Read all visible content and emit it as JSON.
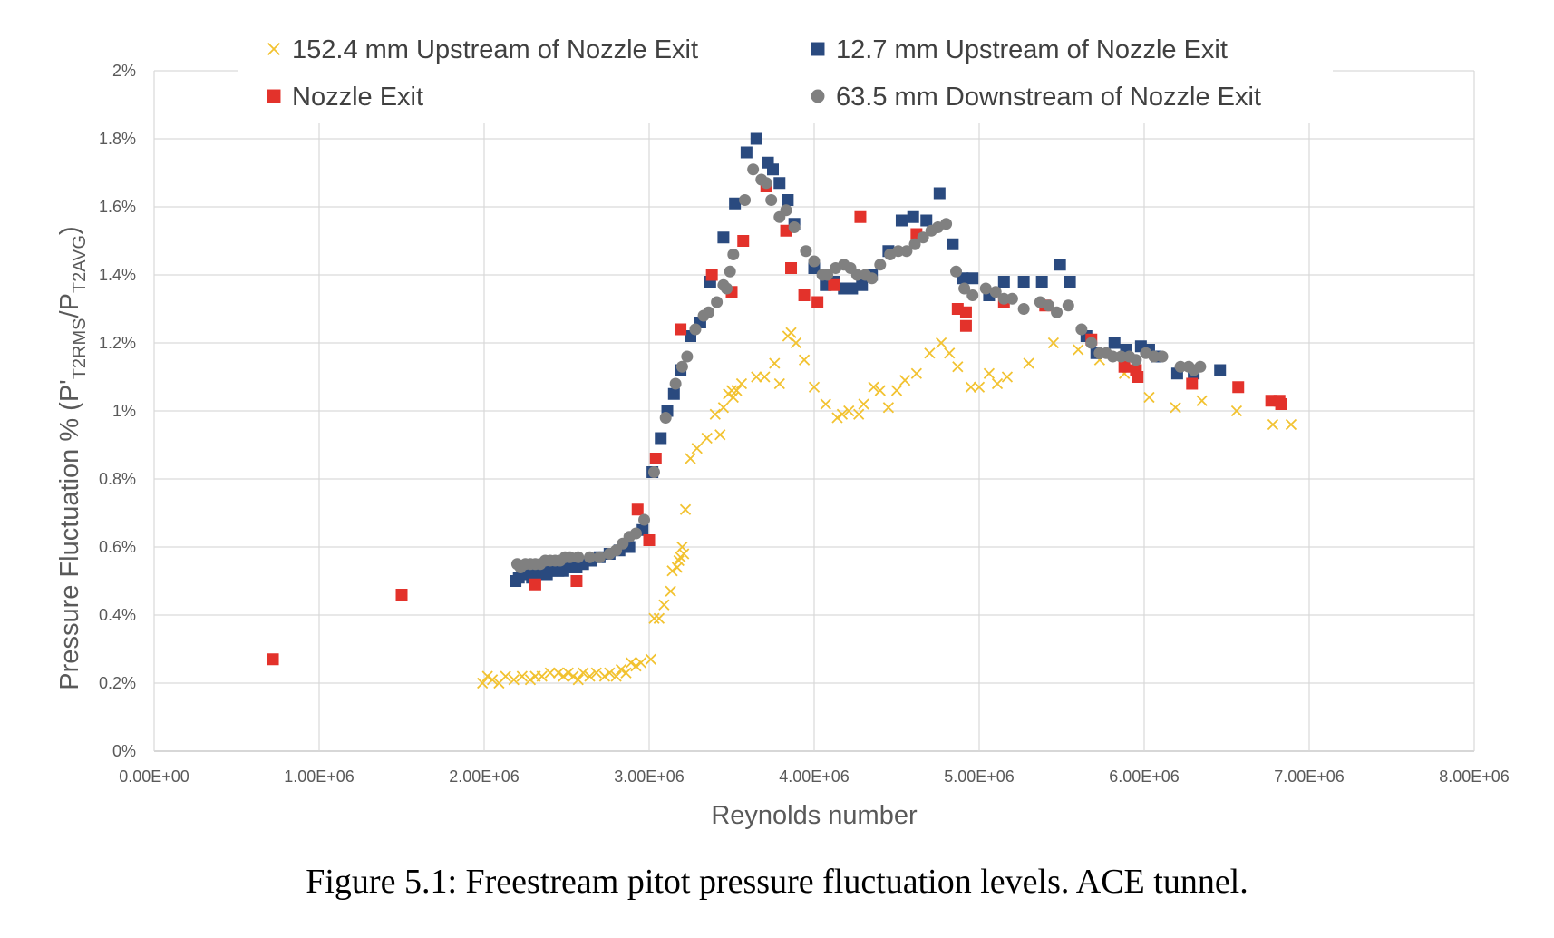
{
  "caption": "Figure 5.1: Freestream pitot pressure fluctuation levels. ACE tunnel.",
  "chart_data": {
    "type": "scatter",
    "xlabel": "Reynolds number",
    "ylabel": {
      "main": "Pressure Fluctuation % (P'",
      "sub1": "T2RMS",
      "mid": "/P",
      "sub2": "T2AVG",
      "end": ")"
    },
    "xlim": [
      0,
      8000000
    ],
    "ylim": [
      0,
      2
    ],
    "x_ticks": [
      "0.00E+00",
      "1.00E+06",
      "2.00E+06",
      "3.00E+06",
      "4.00E+06",
      "5.00E+06",
      "6.00E+06",
      "7.00E+06",
      "8.00E+06"
    ],
    "y_ticks": [
      "0%",
      "0.2%",
      "0.4%",
      "0.6%",
      "0.8%",
      "1%",
      "1.2%",
      "1.4%",
      "1.6%",
      "1.8%",
      "2%"
    ],
    "grid": true,
    "legend_position": "top",
    "series": [
      {
        "name": "152.4 mm Upstream of Nozzle Exit",
        "marker": "x",
        "color": "#F2C230",
        "points": [
          [
            1990000,
            0.2
          ],
          [
            2020000,
            0.22
          ],
          [
            2050000,
            0.21
          ],
          [
            2090000,
            0.2
          ],
          [
            2130000,
            0.22
          ],
          [
            2180000,
            0.21
          ],
          [
            2230000,
            0.22
          ],
          [
            2280000,
            0.21
          ],
          [
            2310000,
            0.22
          ],
          [
            2350000,
            0.22
          ],
          [
            2400000,
            0.23
          ],
          [
            2450000,
            0.23
          ],
          [
            2480000,
            0.22
          ],
          [
            2510000,
            0.23
          ],
          [
            2540000,
            0.22
          ],
          [
            2570000,
            0.21
          ],
          [
            2600000,
            0.23
          ],
          [
            2640000,
            0.22
          ],
          [
            2680000,
            0.23
          ],
          [
            2730000,
            0.22
          ],
          [
            2760000,
            0.23
          ],
          [
            2800000,
            0.22
          ],
          [
            2830000,
            0.24
          ],
          [
            2860000,
            0.23
          ],
          [
            2890000,
            0.26
          ],
          [
            2920000,
            0.25
          ],
          [
            2950000,
            0.26
          ],
          [
            3010000,
            0.27
          ],
          [
            3030000,
            0.39
          ],
          [
            3060000,
            0.39
          ],
          [
            3090000,
            0.43
          ],
          [
            3130000,
            0.47
          ],
          [
            3140000,
            0.53
          ],
          [
            3170000,
            0.54
          ],
          [
            3180000,
            0.56
          ],
          [
            3190000,
            0.57
          ],
          [
            3200000,
            0.6
          ],
          [
            3210000,
            0.58
          ],
          [
            3220000,
            0.71
          ],
          [
            3250000,
            0.86
          ],
          [
            3290000,
            0.89
          ],
          [
            3350000,
            0.92
          ],
          [
            3400000,
            0.99
          ],
          [
            3430000,
            0.93
          ],
          [
            3450000,
            1.01
          ],
          [
            3480000,
            1.05
          ],
          [
            3500000,
            1.06
          ],
          [
            3510000,
            1.04
          ],
          [
            3530000,
            1.06
          ],
          [
            3560000,
            1.08
          ],
          [
            3650000,
            1.1
          ],
          [
            3700000,
            1.1
          ],
          [
            3760000,
            1.14
          ],
          [
            3790000,
            1.08
          ],
          [
            3840000,
            1.22
          ],
          [
            3860000,
            1.23
          ],
          [
            3890000,
            1.2
          ],
          [
            3940000,
            1.15
          ],
          [
            4000000,
            1.07
          ],
          [
            4070000,
            1.02
          ],
          [
            4140000,
            0.98
          ],
          [
            4170000,
            0.99
          ],
          [
            4210000,
            1.0
          ],
          [
            4270000,
            0.99
          ],
          [
            4300000,
            1.02
          ],
          [
            4360000,
            1.07
          ],
          [
            4400000,
            1.06
          ],
          [
            4450000,
            1.01
          ],
          [
            4500000,
            1.06
          ],
          [
            4550000,
            1.09
          ],
          [
            4620000,
            1.11
          ],
          [
            4700000,
            1.17
          ],
          [
            4770000,
            1.2
          ],
          [
            4820000,
            1.17
          ],
          [
            4870000,
            1.13
          ],
          [
            4950000,
            1.07
          ],
          [
            5000000,
            1.07
          ],
          [
            5060000,
            1.11
          ],
          [
            5110000,
            1.08
          ],
          [
            5170000,
            1.1
          ],
          [
            5300000,
            1.14
          ],
          [
            5450000,
            1.2
          ],
          [
            5600000,
            1.18
          ],
          [
            5730000,
            1.15
          ],
          [
            5880000,
            1.11
          ],
          [
            6030000,
            1.04
          ],
          [
            6190000,
            1.01
          ],
          [
            6350000,
            1.03
          ],
          [
            6560000,
            1.0
          ],
          [
            6780000,
            0.96
          ],
          [
            6890000,
            0.96
          ]
        ]
      },
      {
        "name": "12.7 mm Upstream of Nozzle Exit",
        "marker": "square",
        "color": "#2A4A7F",
        "points": [
          [
            2190000,
            0.5
          ],
          [
            2210000,
            0.51
          ],
          [
            2230000,
            0.52
          ],
          [
            2260000,
            0.52
          ],
          [
            2290000,
            0.51
          ],
          [
            2320000,
            0.52
          ],
          [
            2350000,
            0.53
          ],
          [
            2380000,
            0.52
          ],
          [
            2410000,
            0.53
          ],
          [
            2450000,
            0.53
          ],
          [
            2480000,
            0.53
          ],
          [
            2520000,
            0.54
          ],
          [
            2560000,
            0.54
          ],
          [
            2600000,
            0.55
          ],
          [
            2650000,
            0.56
          ],
          [
            2700000,
            0.57
          ],
          [
            2760000,
            0.58
          ],
          [
            2820000,
            0.59
          ],
          [
            2880000,
            0.6
          ],
          [
            2960000,
            0.65
          ],
          [
            3020000,
            0.82
          ],
          [
            3070000,
            0.92
          ],
          [
            3110000,
            1.0
          ],
          [
            3150000,
            1.05
          ],
          [
            3190000,
            1.12
          ],
          [
            3250000,
            1.22
          ],
          [
            3310000,
            1.26
          ],
          [
            3370000,
            1.38
          ],
          [
            3450000,
            1.51
          ],
          [
            3520000,
            1.61
          ],
          [
            3590000,
            1.76
          ],
          [
            3650000,
            1.8
          ],
          [
            3720000,
            1.73
          ],
          [
            3750000,
            1.71
          ],
          [
            3790000,
            1.67
          ],
          [
            3840000,
            1.62
          ],
          [
            3880000,
            1.55
          ],
          [
            4000000,
            1.42
          ],
          [
            4070000,
            1.37
          ],
          [
            4120000,
            1.38
          ],
          [
            4180000,
            1.36
          ],
          [
            4230000,
            1.36
          ],
          [
            4290000,
            1.37
          ],
          [
            4350000,
            1.4
          ],
          [
            4450000,
            1.47
          ],
          [
            4530000,
            1.56
          ],
          [
            4600000,
            1.57
          ],
          [
            4680000,
            1.56
          ],
          [
            4760000,
            1.64
          ],
          [
            4840000,
            1.49
          ],
          [
            4900000,
            1.39
          ],
          [
            4960000,
            1.39
          ],
          [
            5060000,
            1.34
          ],
          [
            5150000,
            1.38
          ],
          [
            5270000,
            1.38
          ],
          [
            5380000,
            1.38
          ],
          [
            5490000,
            1.43
          ],
          [
            5550000,
            1.38
          ],
          [
            5650000,
            1.22
          ],
          [
            5710000,
            1.17
          ],
          [
            5820000,
            1.2
          ],
          [
            5890000,
            1.18
          ],
          [
            5980000,
            1.19
          ],
          [
            6030000,
            1.18
          ],
          [
            6080000,
            1.16
          ],
          [
            6200000,
            1.11
          ],
          [
            6300000,
            1.11
          ],
          [
            6460000,
            1.12
          ]
        ]
      },
      {
        "name": "Nozzle Exit",
        "marker": "square",
        "color": "#E3322B",
        "points": [
          [
            720000,
            0.27
          ],
          [
            1500000,
            0.46
          ],
          [
            2310000,
            0.49
          ],
          [
            2560000,
            0.5
          ],
          [
            2930000,
            0.71
          ],
          [
            3000000,
            0.62
          ],
          [
            3040000,
            0.86
          ],
          [
            3190000,
            1.24
          ],
          [
            3380000,
            1.4
          ],
          [
            3500000,
            1.35
          ],
          [
            3570000,
            1.5
          ],
          [
            3710000,
            1.66
          ],
          [
            3830000,
            1.53
          ],
          [
            3860000,
            1.42
          ],
          [
            3940000,
            1.34
          ],
          [
            4020000,
            1.32
          ],
          [
            4120000,
            1.37
          ],
          [
            4280000,
            1.57
          ],
          [
            4620000,
            1.52
          ],
          [
            4870000,
            1.3
          ],
          [
            4920000,
            1.29
          ],
          [
            4920000,
            1.25
          ],
          [
            5150000,
            1.32
          ],
          [
            5400000,
            1.31
          ],
          [
            5680000,
            1.21
          ],
          [
            5880000,
            1.13
          ],
          [
            5950000,
            1.12
          ],
          [
            5960000,
            1.1
          ],
          [
            6290000,
            1.08
          ],
          [
            6570000,
            1.07
          ],
          [
            6770000,
            1.03
          ],
          [
            6820000,
            1.03
          ],
          [
            6830000,
            1.02
          ]
        ]
      },
      {
        "name": "63.5 mm Downstream of Nozzle Exit",
        "marker": "circle",
        "color": "#808080",
        "points": [
          [
            2200000,
            0.55
          ],
          [
            2220000,
            0.54
          ],
          [
            2250000,
            0.55
          ],
          [
            2280000,
            0.55
          ],
          [
            2310000,
            0.55
          ],
          [
            2340000,
            0.55
          ],
          [
            2370000,
            0.56
          ],
          [
            2400000,
            0.56
          ],
          [
            2430000,
            0.56
          ],
          [
            2460000,
            0.56
          ],
          [
            2490000,
            0.57
          ],
          [
            2520000,
            0.57
          ],
          [
            2570000,
            0.57
          ],
          [
            2640000,
            0.57
          ],
          [
            2700000,
            0.57
          ],
          [
            2760000,
            0.58
          ],
          [
            2800000,
            0.59
          ],
          [
            2840000,
            0.61
          ],
          [
            2880000,
            0.63
          ],
          [
            2920000,
            0.64
          ],
          [
            2970000,
            0.68
          ],
          [
            3030000,
            0.82
          ],
          [
            3100000,
            0.98
          ],
          [
            3160000,
            1.08
          ],
          [
            3200000,
            1.13
          ],
          [
            3230000,
            1.16
          ],
          [
            3280000,
            1.24
          ],
          [
            3330000,
            1.28
          ],
          [
            3360000,
            1.29
          ],
          [
            3410000,
            1.32
          ],
          [
            3450000,
            1.37
          ],
          [
            3470000,
            1.36
          ],
          [
            3490000,
            1.41
          ],
          [
            3510000,
            1.46
          ],
          [
            3580000,
            1.62
          ],
          [
            3630000,
            1.71
          ],
          [
            3680000,
            1.68
          ],
          [
            3710000,
            1.67
          ],
          [
            3740000,
            1.62
          ],
          [
            3790000,
            1.57
          ],
          [
            3830000,
            1.59
          ],
          [
            3880000,
            1.54
          ],
          [
            3950000,
            1.47
          ],
          [
            4000000,
            1.44
          ],
          [
            4050000,
            1.4
          ],
          [
            4080000,
            1.4
          ],
          [
            4130000,
            1.42
          ],
          [
            4180000,
            1.43
          ],
          [
            4220000,
            1.42
          ],
          [
            4260000,
            1.4
          ],
          [
            4310000,
            1.4
          ],
          [
            4350000,
            1.39
          ],
          [
            4400000,
            1.43
          ],
          [
            4460000,
            1.46
          ],
          [
            4510000,
            1.47
          ],
          [
            4560000,
            1.47
          ],
          [
            4610000,
            1.49
          ],
          [
            4660000,
            1.51
          ],
          [
            4710000,
            1.53
          ],
          [
            4750000,
            1.54
          ],
          [
            4800000,
            1.55
          ],
          [
            4860000,
            1.41
          ],
          [
            4910000,
            1.36
          ],
          [
            4960000,
            1.34
          ],
          [
            5040000,
            1.36
          ],
          [
            5100000,
            1.35
          ],
          [
            5150000,
            1.33
          ],
          [
            5200000,
            1.33
          ],
          [
            5270000,
            1.3
          ],
          [
            5370000,
            1.32
          ],
          [
            5420000,
            1.31
          ],
          [
            5470000,
            1.29
          ],
          [
            5540000,
            1.31
          ],
          [
            5620000,
            1.24
          ],
          [
            5680000,
            1.2
          ],
          [
            5730000,
            1.17
          ],
          [
            5770000,
            1.17
          ],
          [
            5810000,
            1.16
          ],
          [
            5860000,
            1.16
          ],
          [
            5910000,
            1.16
          ],
          [
            5950000,
            1.15
          ],
          [
            6010000,
            1.17
          ],
          [
            6060000,
            1.16
          ],
          [
            6110000,
            1.16
          ],
          [
            6220000,
            1.13
          ],
          [
            6270000,
            1.13
          ],
          [
            6300000,
            1.12
          ],
          [
            6340000,
            1.13
          ]
        ]
      }
    ]
  }
}
